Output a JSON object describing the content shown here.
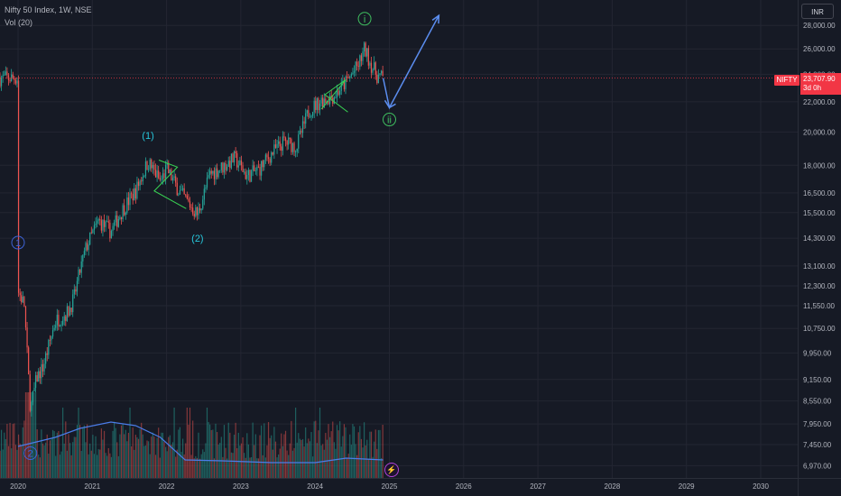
{
  "header": {
    "symbol": "Nifty 50 Index, 1W, NSE",
    "volume_indicator": "Vol (20)"
  },
  "currency_button": "INR",
  "price_badge": {
    "ticker": "NIFTY",
    "last_price": "23,707.90",
    "countdown": "3d 0h"
  },
  "colors": {
    "background": "#161a25",
    "up": "#26a69a",
    "down": "#ef5350",
    "volume_ma": "#4a7ce8",
    "arrow": "#5b8def",
    "price_line": "#f23645",
    "wave_cyan": "#26c6da",
    "wave_green": "#3fbf5f",
    "wave_blue": "#3d63d6",
    "triangle": "#39d353"
  },
  "chart_data": {
    "type": "candlestick",
    "title": "Nifty 50 Index, 1W, NSE",
    "y_scale": "log",
    "ylim": [
      6800,
      30000
    ],
    "x_range": [
      "2020-01",
      "2030-12"
    ],
    "y_ticks": [
      "28,000.00",
      "26,000.00",
      "24,000.00",
      "22,000.00",
      "20,000.00",
      "18,000.00",
      "16,500.00",
      "15,500.00",
      "14,300.00",
      "13,100.00",
      "12,300.00",
      "11,550.00",
      "10,750.00",
      "9,950.00",
      "9,150.00",
      "8,550.00",
      "7,950.00",
      "7,450.00",
      "6,970.00"
    ],
    "x_ticks": [
      "2020",
      "2021",
      "2022",
      "2023",
      "2024",
      "2025",
      "2026",
      "2027",
      "2028",
      "2029",
      "2030"
    ],
    "last_price": 23707.9,
    "price_path": [
      [
        "2020-01",
        12100
      ],
      [
        "2020-02",
        11600
      ],
      [
        "2020-03",
        8300
      ],
      [
        "2020-04",
        9200
      ],
      [
        "2020-05",
        9500
      ],
      [
        "2020-06",
        10200
      ],
      [
        "2020-07",
        11000
      ],
      [
        "2020-09",
        11300
      ],
      [
        "2020-10",
        11800
      ],
      [
        "2020-11",
        12900
      ],
      [
        "2020-12",
        13900
      ],
      [
        "2021-02",
        15100
      ],
      [
        "2021-04",
        14600
      ],
      [
        "2021-06",
        15700
      ],
      [
        "2021-08",
        16600
      ],
      [
        "2021-10",
        18200
      ],
      [
        "2021-12",
        17100
      ],
      [
        "2022-01",
        17800
      ],
      [
        "2022-03",
        16600
      ],
      [
        "2022-06",
        15400
      ],
      [
        "2022-08",
        17500
      ],
      [
        "2022-10",
        17900
      ],
      [
        "2022-12",
        18400
      ],
      [
        "2023-02",
        17400
      ],
      [
        "2023-04",
        17800
      ],
      [
        "2023-06",
        18700
      ],
      [
        "2023-08",
        19400
      ],
      [
        "2023-10",
        19100
      ],
      [
        "2023-12",
        21400
      ],
      [
        "2024-02",
        22100
      ],
      [
        "2024-04",
        22400
      ],
      [
        "2024-06",
        23400
      ],
      [
        "2024-08",
        24700
      ],
      [
        "2024-09",
        26000
      ],
      [
        "2024-10",
        24800
      ],
      [
        "2024-11",
        23900
      ],
      [
        "2024-12",
        23707.9
      ]
    ],
    "annotations": [
      {
        "label": "1",
        "style": "circled",
        "date": "2020-01",
        "price": 14100
      },
      {
        "label": "2",
        "style": "circled",
        "date": "2020-03",
        "price": 7250
      },
      {
        "label": "(1)",
        "style": "paren",
        "date": "2021-10",
        "price": 19800
      },
      {
        "label": "(2)",
        "style": "paren",
        "date": "2022-06",
        "price": 14300
      },
      {
        "label": "i",
        "style": "circled",
        "date": "2024-09",
        "price": 28600
      },
      {
        "label": "ii",
        "style": "circled",
        "date": "2025-01",
        "price": 20800
      }
    ],
    "projection": [
      [
        "2024-12",
        23707.9
      ],
      [
        "2025-01",
        21600
      ],
      [
        "2025-09",
        28900
      ]
    ],
    "volume_ma_path": [
      [
        "2020-01",
        0.35
      ],
      [
        "2020-04",
        0.4
      ],
      [
        "2020-07",
        0.45
      ],
      [
        "2020-11",
        0.55
      ],
      [
        "2021-04",
        0.62
      ],
      [
        "2021-08",
        0.58
      ],
      [
        "2021-12",
        0.45
      ],
      [
        "2022-04",
        0.2
      ],
      [
        "2022-10",
        0.19
      ],
      [
        "2023-06",
        0.17
      ],
      [
        "2024-01",
        0.17
      ],
      [
        "2024-06",
        0.22
      ],
      [
        "2024-09",
        0.21
      ],
      [
        "2024-12",
        0.2
      ]
    ]
  }
}
